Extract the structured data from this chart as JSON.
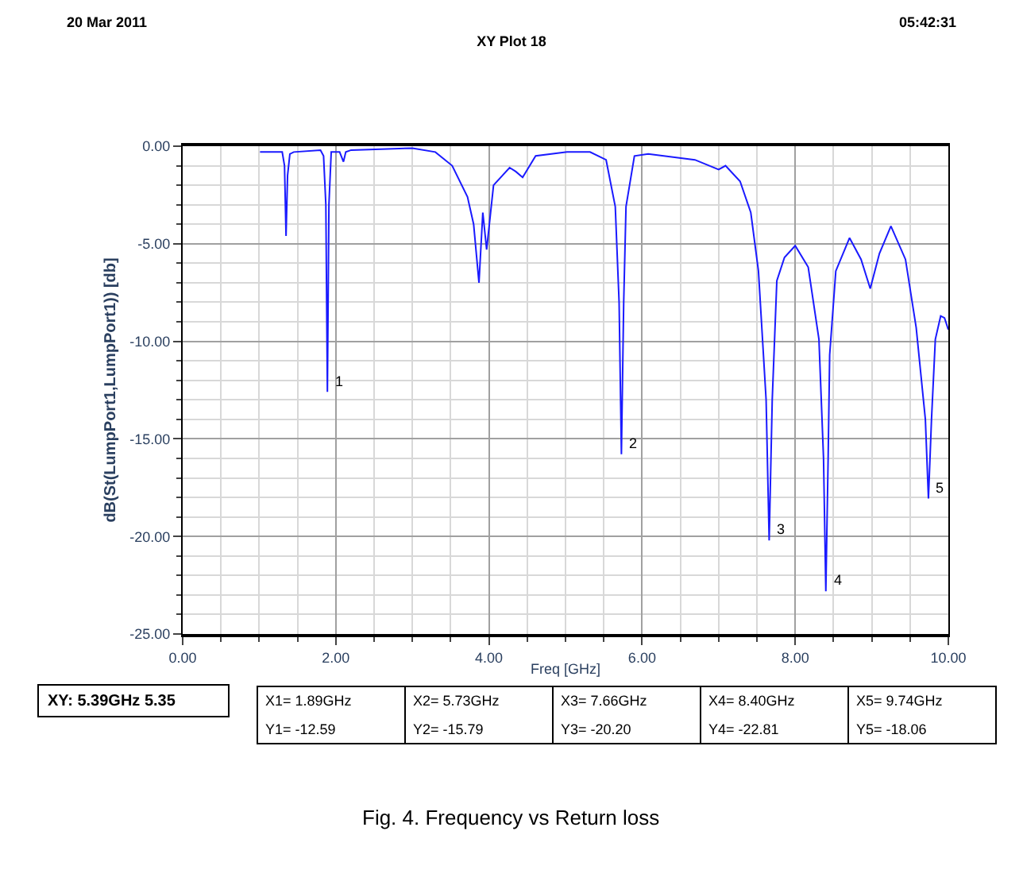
{
  "chart_data": {
    "type": "line",
    "title": "XY Plot 18",
    "xlabel": "Freq [GHz]",
    "ylabel": "dB(St(LumpPort1,LumpPort1)) [db]",
    "x": [
      1.01,
      1.3,
      1.33,
      1.35,
      1.37,
      1.4,
      1.45,
      1.8,
      1.84,
      1.87,
      1.89,
      1.91,
      1.94,
      2.05,
      2.1,
      2.13,
      2.2,
      3.0,
      3.3,
      3.52,
      3.72,
      3.8,
      3.87,
      3.92,
      3.97,
      4.06,
      4.27,
      4.35,
      4.44,
      4.61,
      5.02,
      5.32,
      5.53,
      5.65,
      5.7,
      5.73,
      5.76,
      5.79,
      5.9,
      6.08,
      6.69,
      7.0,
      7.09,
      7.28,
      7.42,
      7.52,
      7.62,
      7.66,
      7.7,
      7.76,
      7.86,
      8.0,
      8.17,
      8.31,
      8.37,
      8.4,
      8.43,
      8.45,
      8.53,
      8.71,
      8.86,
      8.98,
      9.1,
      9.25,
      9.44,
      9.58,
      9.7,
      9.74,
      9.78,
      9.83,
      9.9,
      9.95,
      10.0
    ],
    "series": [
      {
        "color": "#1a1aff",
        "values": [
          -0.3,
          -0.3,
          -1.0,
          -4.6,
          -1.5,
          -0.4,
          -0.3,
          -0.2,
          -0.5,
          -3.0,
          -12.59,
          -3.0,
          -0.3,
          -0.3,
          -0.8,
          -0.3,
          -0.2,
          -0.1,
          -0.3,
          -1.0,
          -2.6,
          -4.0,
          -7.0,
          -3.4,
          -5.3,
          -2.0,
          -1.1,
          -1.3,
          -1.6,
          -0.5,
          -0.3,
          -0.3,
          -0.7,
          -3.1,
          -8.0,
          -15.79,
          -8.0,
          -3.1,
          -0.5,
          -0.4,
          -0.7,
          -1.2,
          -1.0,
          -1.8,
          -3.4,
          -6.4,
          -13.0,
          -20.2,
          -13.0,
          -6.9,
          -5.7,
          -5.1,
          -6.2,
          -9.9,
          -16.0,
          -22.81,
          -16.0,
          -10.7,
          -6.4,
          -4.7,
          -5.8,
          -7.3,
          -5.5,
          -4.1,
          -5.8,
          -9.3,
          -14.0,
          -18.06,
          -14.0,
          -9.9,
          -8.7,
          -8.8,
          -9.4
        ]
      }
    ],
    "xlim": [
      0,
      10
    ],
    "ylim": [
      -25,
      0
    ],
    "xticks": [
      {
        "value": 0,
        "label": "0.00"
      },
      {
        "value": 2,
        "label": "2.00"
      },
      {
        "value": 4,
        "label": "4.00"
      },
      {
        "value": 6,
        "label": "6.00"
      },
      {
        "value": 8,
        "label": "8.00"
      },
      {
        "value": 10,
        "label": "10.00"
      }
    ],
    "yticks": [
      {
        "value": -25,
        "label": "-25.00"
      },
      {
        "value": -20,
        "label": "-20.00"
      },
      {
        "value": -15,
        "label": "-15.00"
      },
      {
        "value": -10,
        "label": "-10.00"
      },
      {
        "value": -5,
        "label": "-5.00"
      },
      {
        "value": 0,
        "label": "0.00"
      }
    ],
    "grid": true,
    "marker": "none",
    "line_style": "solid",
    "annotations": [
      "20 Mar 2011",
      "05:42:31",
      "XY: 5.39GHz 5.35",
      "X1= 1.89GHz",
      "Y1= -12.59",
      "X2= 5.73GHz",
      "Y2= -15.79",
      "X3= 7.66GHz",
      "Y3= -20.20",
      "X4= 8.40GHz",
      "Y4= -22.81",
      "X5= 9.74GHz",
      "Y5= -18.06",
      "Fig. 4. Frequency vs Return loss",
      {
        "text": "1",
        "x": 1.89,
        "y": -12.59
      },
      {
        "text": "2",
        "x": 5.73,
        "y": -15.79
      },
      {
        "text": "3",
        "x": 7.66,
        "y": -20.2
      },
      {
        "text": "4",
        "x": 8.4,
        "y": -22.81
      },
      {
        "text": "5",
        "x": 9.74,
        "y": -18.06
      }
    ]
  }
}
